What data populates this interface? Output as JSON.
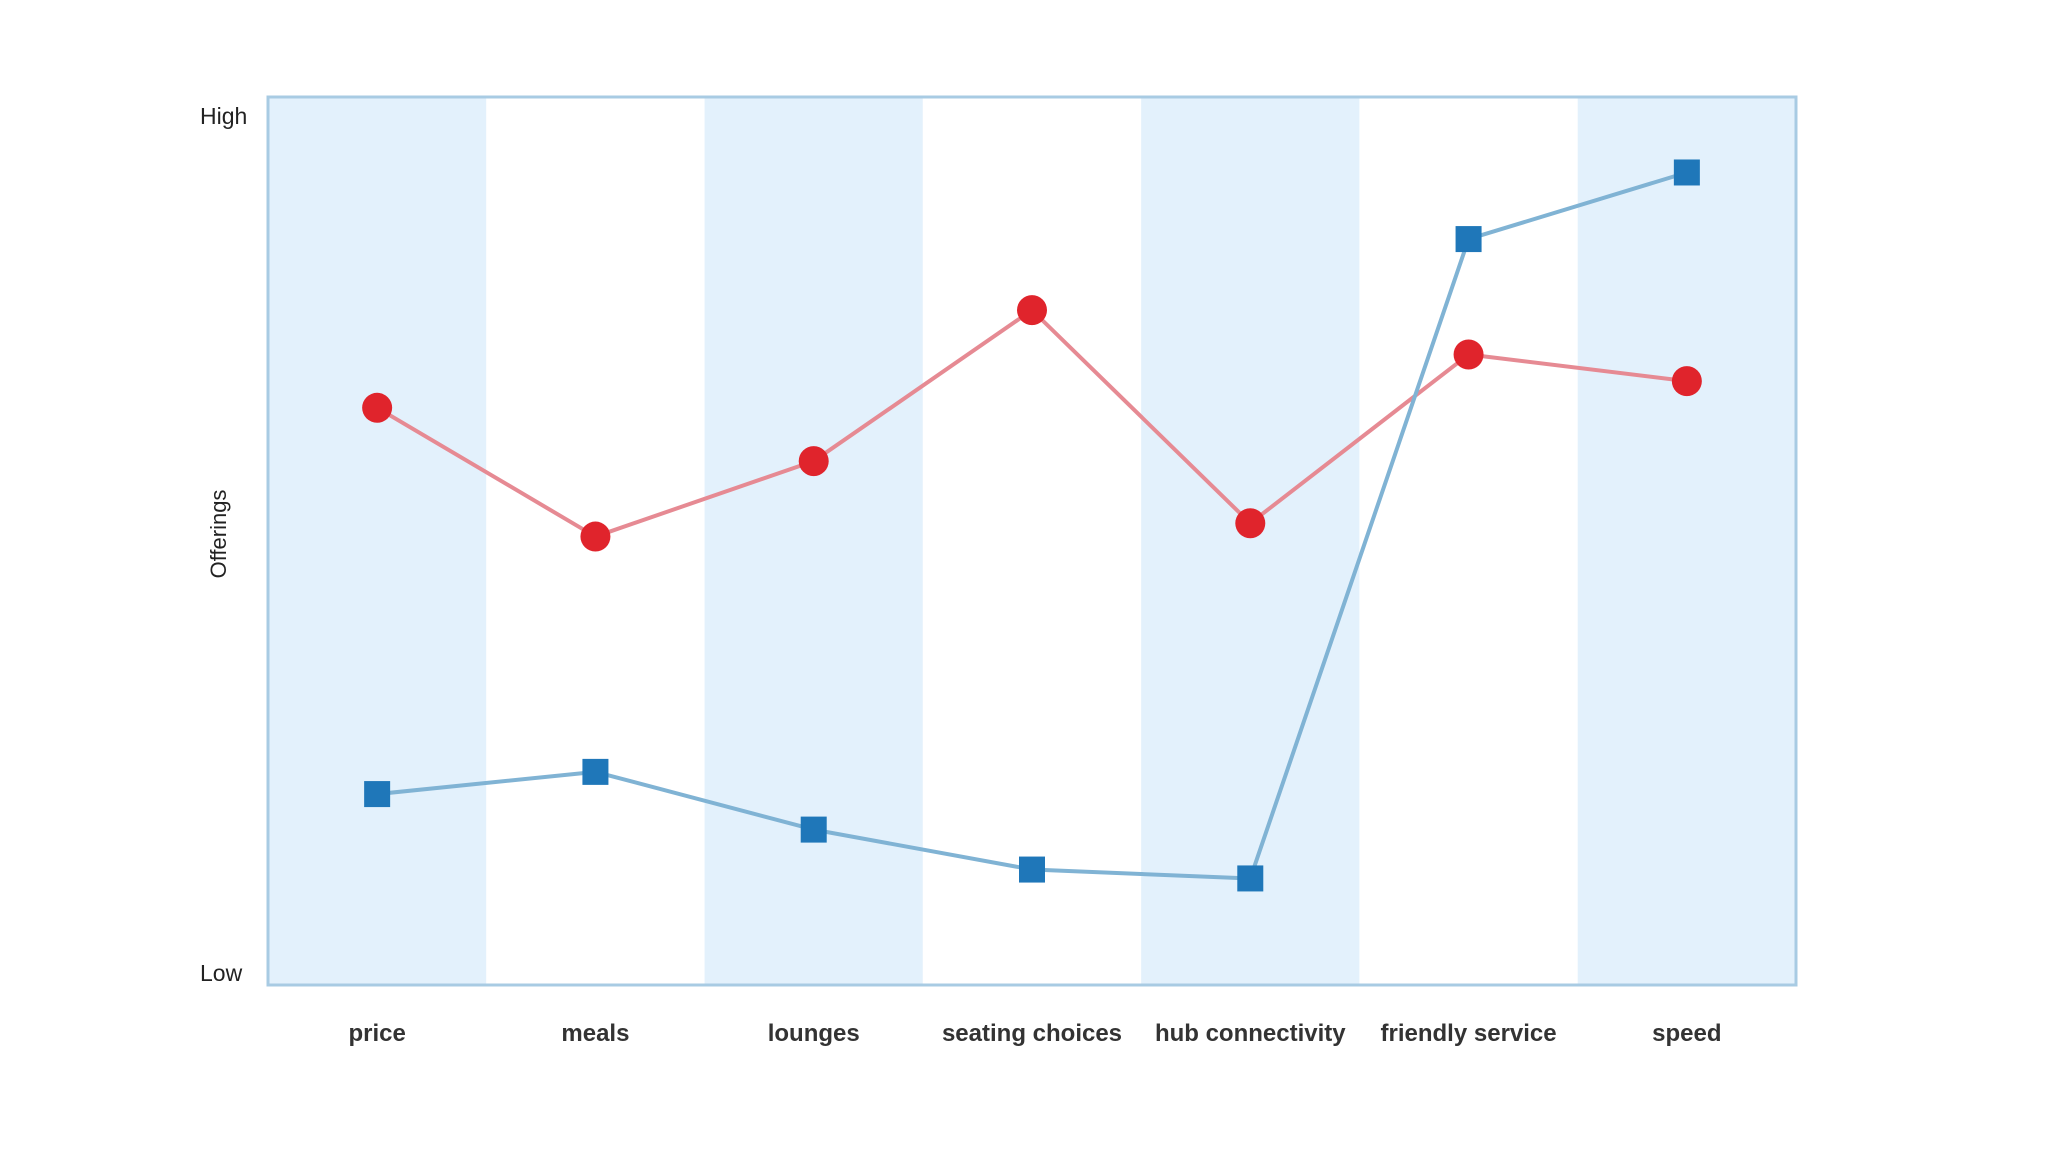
{
  "chart_data": {
    "type": "line",
    "categories": [
      "price",
      "meals",
      "lounges",
      "seating choices",
      "hub connectivity",
      "friendly service",
      "speed"
    ],
    "ylabel": "Offerings",
    "y_tick_labels": {
      "high": "High",
      "low": "Low"
    },
    "ylim": [
      0,
      100
    ],
    "grid": false,
    "band_colors": [
      "#e3f1fc",
      "#ffffff"
    ],
    "series": [
      {
        "color": "#e0242c",
        "line_color": "#e68a93",
        "marker": "circle",
        "values": [
          65,
          50.5,
          59,
          76,
          52,
          71,
          68
        ]
      },
      {
        "color": "#1f77b9",
        "line_color": "#80b3d4",
        "marker": "square",
        "values": [
          21.5,
          24,
          17.5,
          13,
          12,
          84,
          91.5
        ]
      }
    ]
  }
}
